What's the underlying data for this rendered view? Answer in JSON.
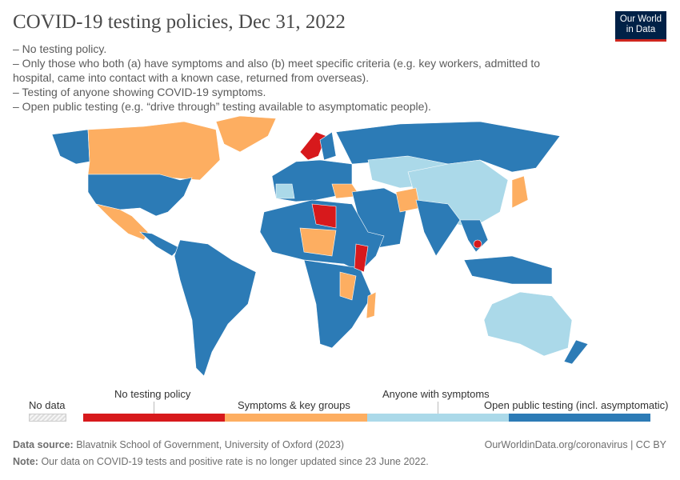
{
  "title": "COVID-19 testing policies, Dec 31, 2022",
  "description": [
    "– No testing policy.",
    "– Only those who both (a) have symptoms and also (b) meet specific criteria (e.g. key workers, admitted to hospital, came into contact with a known case, returned from overseas).",
    "– Testing of anyone showing COVID-19 symptoms.",
    "– Open public testing (e.g. “drive through” testing available to asymptomatic people)."
  ],
  "logo": {
    "line1": "Our World",
    "line2": "in Data"
  },
  "colors": {
    "none": "#d7191c",
    "symptoms_key_groups": "#fdae61",
    "anyone_symptoms": "#abd9e9",
    "open_public": "#2c7bb6",
    "no_data": "#eeeeee"
  },
  "legend": {
    "no_data": "No data",
    "items": [
      "No testing policy",
      "Symptoms & key groups",
      "Anyone with symptoms",
      "Open public testing (incl. asymptomatic)"
    ]
  },
  "footer": {
    "source_label": "Data source:",
    "source": "Blavatnik School of Government, University of Oxford (2023)",
    "url": "OurWorldinData.org/coronavirus | CC BY",
    "note_label": "Note:",
    "note": "Our data on COVID-19 tests and positive rate is no longer updated since 23 June 2022."
  }
}
